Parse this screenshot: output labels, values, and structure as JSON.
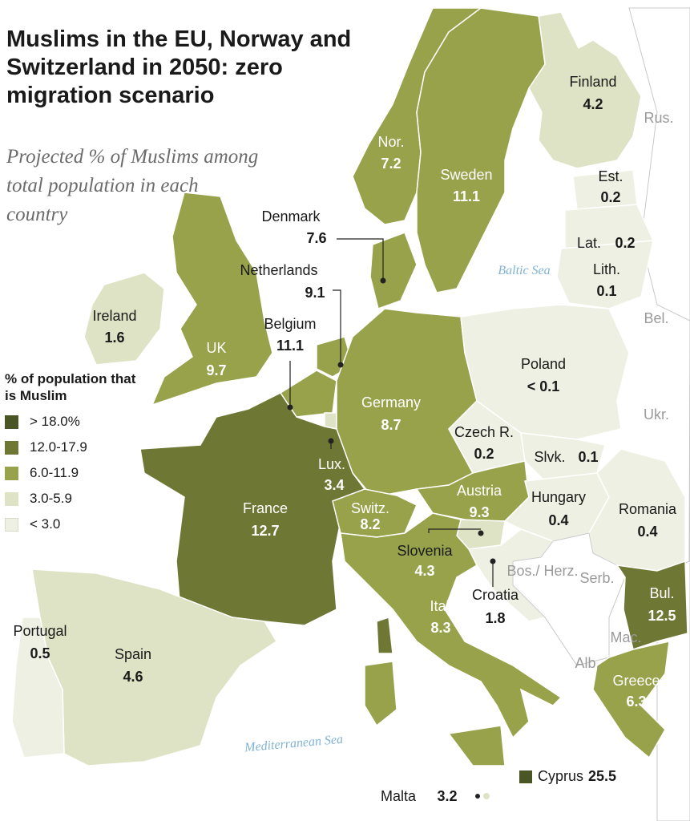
{
  "title": "Muslims in the EU, Norway and Switzerland in 2050: zero migration scenario",
  "subtitle": "Projected % of Muslims among total population in each country",
  "colors": {
    "sea": "#ffffff",
    "border": "#ffffff",
    "outside": "#ffffff",
    "gt18": "#4a5526",
    "c12_17": "#6e7834",
    "c6_11": "#97a24b",
    "c3_5": "#dde3c4",
    "lt3": "#eef0e3"
  },
  "legend": {
    "title": "% of population that is Muslim",
    "items": [
      {
        "label": "> 18.0%",
        "color": "#4a5526"
      },
      {
        "label": "12.0-17.9",
        "color": "#6e7834"
      },
      {
        "label": "6.0-11.9",
        "color": "#97a24b"
      },
      {
        "label": "3.0-5.9",
        "color": "#dde3c4"
      },
      {
        "label": "< 3.0",
        "color": "#eef0e3"
      }
    ]
  },
  "countries": [
    {
      "name": "Finland",
      "value": "4.2"
    },
    {
      "name": "Nor.",
      "value": "7.2"
    },
    {
      "name": "Sweden",
      "value": "11.1"
    },
    {
      "name": "Est.",
      "value": "0.2"
    },
    {
      "name": "Lat.",
      "value": "0.2"
    },
    {
      "name": "Lith.",
      "value": "0.1"
    },
    {
      "name": "Denmark",
      "value": "7.6"
    },
    {
      "name": "Netherlands",
      "value": "9.1"
    },
    {
      "name": "Belgium",
      "value": "11.1"
    },
    {
      "name": "Ireland",
      "value": "1.6"
    },
    {
      "name": "UK",
      "value": "9.7"
    },
    {
      "name": "Poland",
      "value": "< 0.1"
    },
    {
      "name": "Germany",
      "value": "8.7"
    },
    {
      "name": "Czech R.",
      "value": "0.2"
    },
    {
      "name": "Slvk.",
      "value": "0.1"
    },
    {
      "name": "Lux.",
      "value": "3.4"
    },
    {
      "name": "France",
      "value": "12.7"
    },
    {
      "name": "Austria",
      "value": "9.3"
    },
    {
      "name": "Hungary",
      "value": "0.4"
    },
    {
      "name": "Romania",
      "value": "0.4"
    },
    {
      "name": "Switz.",
      "value": "8.2"
    },
    {
      "name": "Slovenia",
      "value": "4.3"
    },
    {
      "name": "Croatia",
      "value": "1.8"
    },
    {
      "name": "Italy",
      "value": "8.3"
    },
    {
      "name": "Bul.",
      "value": "12.5"
    },
    {
      "name": "Portugal",
      "value": "0.5"
    },
    {
      "name": "Spain",
      "value": "4.6"
    },
    {
      "name": "Greece",
      "value": "6.3"
    },
    {
      "name": "Malta",
      "value": "3.2"
    },
    {
      "name": "Cyprus",
      "value": "25.5"
    }
  ],
  "non_eu": [
    "Rus.",
    "Bel.",
    "Ukr.",
    "Bos./ Herz.",
    "Serb.",
    "Mac.",
    "Alb."
  ],
  "seas": [
    "Baltic Sea",
    "Mediterranean Sea"
  ]
}
